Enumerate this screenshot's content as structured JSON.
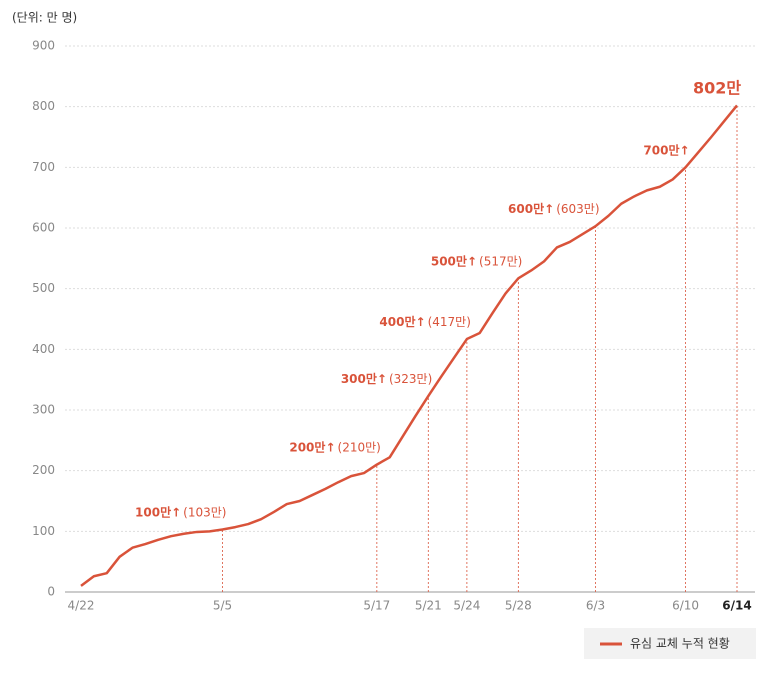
{
  "chart_data": {
    "type": "line",
    "unit_label": "(단위: 만 명)",
    "categories": [
      "4/22",
      null,
      null,
      null,
      null,
      null,
      null,
      null,
      null,
      null,
      null,
      "5/5",
      null,
      null,
      null,
      null,
      null,
      null,
      null,
      null,
      null,
      null,
      null,
      "5/17",
      null,
      null,
      null,
      "5/21",
      null,
      null,
      "5/24",
      null,
      null,
      null,
      "5/28",
      null,
      null,
      null,
      null,
      null,
      "6/3",
      null,
      null,
      null,
      null,
      null,
      null,
      "6/10",
      null,
      null,
      null,
      "6/14"
    ],
    "series": [
      {
        "name": "유심 교체 누적 현황",
        "color": "#d9533a",
        "values": [
          10,
          26,
          31,
          58,
          73,
          79,
          86,
          92,
          96,
          99,
          100,
          103,
          107,
          112,
          120,
          132,
          145,
          150,
          160,
          170,
          181,
          191,
          196,
          210,
          222,
          256,
          290,
          323,
          355,
          386,
          417,
          427,
          460,
          492,
          517,
          530,
          545,
          568,
          577,
          590,
          603,
          620,
          640,
          652,
          662,
          668,
          680,
          700,
          725,
          750,
          776,
          802
        ]
      }
    ],
    "ylim": [
      0,
      900
    ],
    "yticks": [
      0,
      100,
      200,
      300,
      400,
      500,
      600,
      700,
      800,
      900
    ],
    "grid": true,
    "annotations": [
      {
        "x": "5/5",
        "text": "100만↑",
        "value_label": "(103만)",
        "value": 103
      },
      {
        "x": "5/17",
        "text": "200만↑",
        "value_label": "(210만)",
        "value": 210
      },
      {
        "x": "5/21",
        "text": "300만↑",
        "value_label": "(323만)",
        "value": 323
      },
      {
        "x": "5/24",
        "text": "400만↑",
        "value_label": "(417만)",
        "value": 417
      },
      {
        "x": "5/28",
        "text": "500만↑",
        "value_label": "(517만)",
        "value": 517
      },
      {
        "x": "6/3",
        "text": "600만↑",
        "value_label": "(603만)",
        "value": 603
      },
      {
        "x": "6/10",
        "text": "700만↑",
        "value": 700
      },
      {
        "x": "6/14",
        "text": "802만",
        "value": 802
      }
    ],
    "legend": "bottom-right"
  }
}
